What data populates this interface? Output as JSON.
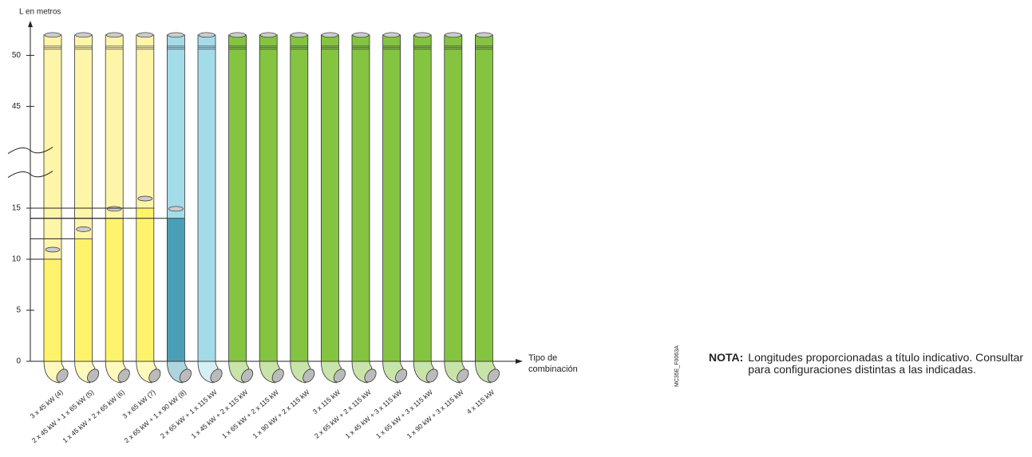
{
  "chart_data": {
    "type": "pipes",
    "y_label": "L en metros",
    "x_label": "Tipo de combinación",
    "categories": [
      "3 x 45 kW (4)",
      "2 x 45 kW + 1 x 65 kW (5)",
      "1 x 45 kW + 2 x 65 kW (6)",
      "3 x 65 kW (7)",
      "2 x 65 kW + 1 x 90 kW (8)",
      "2 x 65 kW + 1 x 115 kW",
      "1 x 45 kW + 2 x 115 kW",
      "1 x 65 kW + 2 x 115 kW",
      "1 x 90 kW + 2 x 115 kW",
      "3 x 115 kW",
      "2 x 65 kW + 2 x 115 kW",
      "1 x 45 kW + 3 x 115 kW",
      "1 x 65 kW + 3 x 115 kW",
      "1 x 90 kW + 3 x 115 kW",
      "4 x 115 kW"
    ],
    "values": [
      10,
      12,
      14,
      15,
      14,
      null,
      null,
      null,
      null,
      null,
      null,
      null,
      null,
      null,
      null
    ],
    "colors": [
      "#fff36b",
      "#fff36b",
      "#fff36b",
      "#fff36b",
      "#4a9fb7",
      "#a3dce8",
      "#84c441",
      "#84c441",
      "#84c441",
      "#84c441",
      "#84c441",
      "#84c441",
      "#84c441",
      "#84c441",
      "#84c441"
    ],
    "upper_colors": [
      "#fff5a8",
      "#fff5a8",
      "#fff5a8",
      "#fff5a8",
      "#a3dce8",
      null,
      null,
      null,
      null,
      null,
      null,
      null,
      null,
      null,
      null
    ],
    "ylim": [
      0,
      52
    ],
    "yticks": [
      0,
      5,
      10,
      15,
      45,
      50
    ],
    "axis_break": [
      18,
      41
    ]
  },
  "figure_code": "MC35E_F0063A",
  "note": {
    "label": "NOTA:",
    "text": "Longitudes proporcionadas a título indicativo. Consultar para configuraciones distintas a las indicadas."
  }
}
